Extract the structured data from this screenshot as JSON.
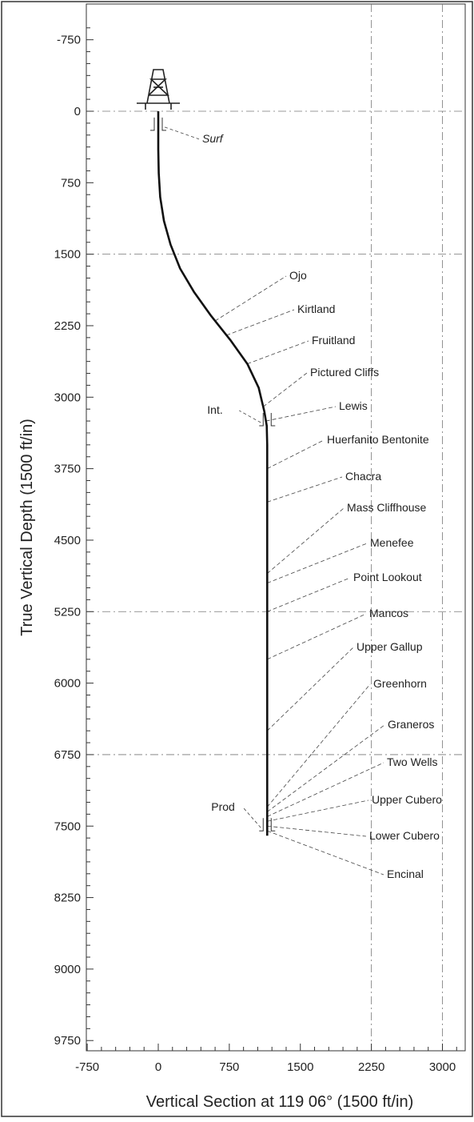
{
  "chart_data": {
    "type": "line",
    "title": "",
    "xlabel": "Vertical Section at 119 06° (1500 ft/in)",
    "ylabel": "True Vertical Depth (1500 ft/in)",
    "xlim": [
      -750,
      3200
    ],
    "ylim": [
      -1050,
      9870
    ],
    "x_ticks": [
      -750,
      0,
      750,
      1500,
      2250,
      3000
    ],
    "y_ticks": [
      -750,
      0,
      750,
      1500,
      2250,
      3000,
      3750,
      4500,
      5250,
      6000,
      6750,
      7500,
      8250,
      9000,
      9750
    ],
    "x_tick_labels": [
      "-750",
      "0",
      "750",
      "1500",
      "2250",
      "3000"
    ],
    "y_tick_labels": [
      "-750",
      "0",
      "750",
      "1500",
      "2250",
      "3000",
      "3750",
      "4500",
      "5250",
      "6000",
      "6750",
      "7500",
      "8250",
      "9000",
      "9750"
    ],
    "grid": "dash-dot",
    "series": [
      {
        "x": [
          0,
          0,
          5,
          20,
          60,
          130,
          230,
          380,
          560,
          760,
          940,
          1060,
          1120,
          1145,
          1150,
          1150,
          1150
        ],
        "y": [
          0,
          400,
          650,
          900,
          1150,
          1400,
          1650,
          1900,
          2150,
          2400,
          2650,
          2900,
          3150,
          3300,
          3500,
          5000,
          7600
        ]
      }
    ],
    "casing_points": [
      {
        "label": "Surf",
        "x": 0,
        "y": 200
      },
      {
        "label": "Int.",
        "x": 1150,
        "y": 3300
      },
      {
        "label": "Prod",
        "x": 1150,
        "y": 7550
      }
    ],
    "formation_tops": [
      {
        "label": "Ojo",
        "depth": 2200
      },
      {
        "label": "Kirtland",
        "depth": 2350
      },
      {
        "label": "Fruitland",
        "depth": 2650
      },
      {
        "label": "Pictured Cliffs",
        "depth": 3100
      },
      {
        "label": "Lewis",
        "depth": 3250
      },
      {
        "label": "Huerfanito Bentonite",
        "depth": 3750
      },
      {
        "label": "Chacra",
        "depth": 4100
      },
      {
        "label": "Mass  Cliffhouse",
        "depth": 4850
      },
      {
        "label": "Menefee",
        "depth": 4950
      },
      {
        "label": "Point Lookout",
        "depth": 5250
      },
      {
        "label": "Mancos",
        "depth": 5750
      },
      {
        "label": "Upper Gallup",
        "depth": 6500
      },
      {
        "label": "Greenhorn",
        "depth": 7300
      },
      {
        "label": "Graneros",
        "depth": 7350
      },
      {
        "label": "Two Wells",
        "depth": 7400
      },
      {
        "label": "Upper Cubero",
        "depth": 7450
      },
      {
        "label": "Lower Cubero",
        "depth": 7500
      },
      {
        "label": "Encinal",
        "depth": 7550
      }
    ]
  }
}
